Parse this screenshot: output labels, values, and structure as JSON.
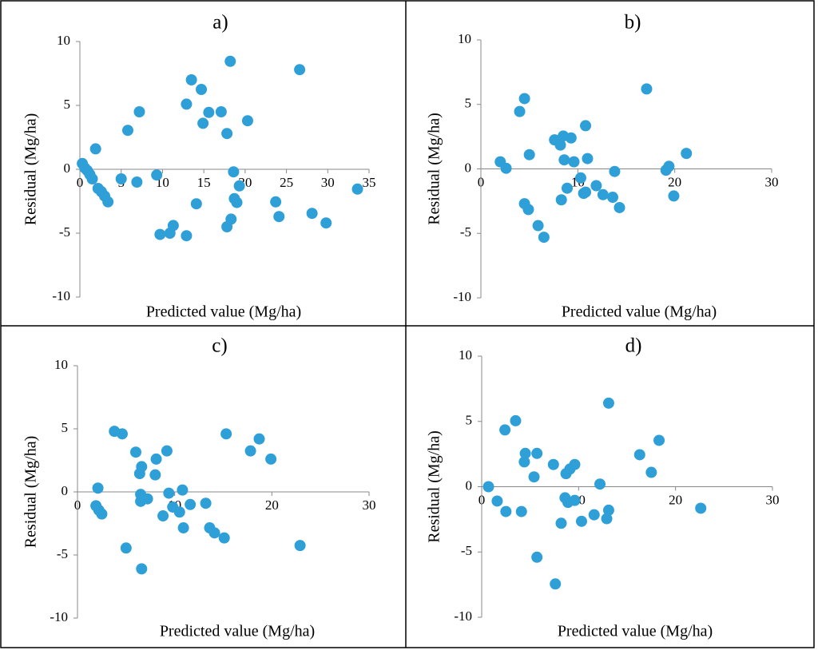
{
  "chart_data": [
    {
      "type": "scatter",
      "title": "a)",
      "xlabel": "Predicted value (Mg/ha)",
      "ylabel": "Residual (Mg/ha)",
      "color": "#2f9fd8",
      "xlim": [
        0,
        35
      ],
      "xticks": [
        0,
        5,
        10,
        15,
        20,
        25,
        30,
        35
      ],
      "ylim": [
        -10,
        10
      ],
      "yticks": [
        -10,
        -5,
        0,
        5,
        10
      ],
      "x": [
        0.3,
        0.6,
        0.9,
        1.2,
        1.5,
        1.9,
        2.2,
        2.6,
        3.0,
        3.4,
        5.0,
        5.8,
        6.9,
        7.2,
        9.3,
        9.7,
        10.9,
        11.3,
        12.9,
        12.9,
        13.5,
        14.1,
        14.7,
        14.9,
        15.6,
        17.1,
        17.8,
        17.8,
        18.3,
        18.2,
        18.6,
        18.7,
        19.0,
        19.3,
        20.3,
        23.7,
        24.1,
        26.6,
        28.1,
        29.8,
        33.6
      ],
      "values": [
        0.45,
        0.1,
        -0.1,
        -0.4,
        -0.75,
        1.6,
        -1.5,
        -1.75,
        -2.1,
        -2.55,
        -0.75,
        3.05,
        -1.0,
        4.5,
        -0.45,
        -5.1,
        -5.0,
        -4.4,
        5.1,
        -5.2,
        7.0,
        -2.7,
        6.25,
        3.6,
        4.45,
        4.5,
        2.8,
        -4.5,
        -3.9,
        8.45,
        -0.2,
        -2.3,
        -2.6,
        -1.3,
        3.8,
        -2.55,
        -3.7,
        7.8,
        -3.45,
        -4.2,
        -1.55
      ]
    },
    {
      "type": "scatter",
      "title": "b)",
      "xlabel": "Predicted value (Mg/ha)",
      "ylabel": "Residual (Mg/ha)",
      "color": "#2f9fd8",
      "xlim": [
        0,
        30
      ],
      "xticks": [
        0,
        10,
        20,
        30
      ],
      "ylim": [
        -10,
        10
      ],
      "yticks": [
        -10,
        -5,
        0,
        5,
        10
      ],
      "x": [
        2.0,
        2.6,
        4.0,
        4.5,
        5.0,
        4.5,
        4.9,
        5.9,
        6.5,
        7.6,
        8.2,
        8.5,
        8.6,
        8.3,
        8.9,
        9.3,
        9.6,
        10.3,
        10.6,
        10.8,
        10.8,
        11.0,
        11.9,
        12.6,
        13.6,
        13.8,
        14.3,
        17.1,
        19.1,
        19.4,
        19.9,
        21.2
      ],
      "values": [
        0.55,
        0.05,
        4.45,
        5.45,
        1.1,
        -2.7,
        -3.15,
        -4.4,
        -5.3,
        2.25,
        1.85,
        2.55,
        0.7,
        -2.4,
        -1.5,
        2.4,
        0.55,
        -0.7,
        -1.9,
        -1.8,
        3.35,
        0.8,
        -1.3,
        -2.0,
        -2.2,
        -0.2,
        -3.0,
        6.2,
        -0.1,
        0.2,
        -2.1,
        1.2
      ]
    },
    {
      "type": "scatter",
      "title": "c)",
      "xlabel": "Predicted value (Mg/ha)",
      "ylabel": "Residual (Mg/ha)",
      "color": "#2f9fd8",
      "xlim": [
        0,
        30
      ],
      "xticks": [
        0,
        10,
        20,
        30
      ],
      "ylim": [
        -10,
        10
      ],
      "yticks": [
        -10,
        -5,
        0,
        5,
        10
      ],
      "x": [
        2.1,
        1.9,
        2.2,
        2.5,
        3.8,
        4.6,
        5.0,
        6.0,
        6.4,
        6.6,
        6.5,
        6.5,
        6.6,
        7.2,
        8.0,
        8.1,
        8.8,
        9.2,
        9.4,
        9.8,
        10.5,
        10.8,
        10.9,
        11.6,
        13.2,
        13.6,
        14.1,
        15.1,
        15.3,
        17.8,
        18.7,
        19.9,
        22.9
      ],
      "values": [
        0.3,
        -1.1,
        -1.45,
        -1.75,
        4.8,
        4.6,
        -4.45,
        3.15,
        1.45,
        2.0,
        -0.2,
        -0.75,
        -6.1,
        -0.55,
        1.35,
        2.6,
        -1.9,
        3.25,
        -0.1,
        -1.2,
        -1.6,
        0.15,
        -2.85,
        -1.0,
        -0.9,
        -2.85,
        -3.25,
        -3.65,
        4.6,
        3.25,
        4.2,
        2.6,
        -4.25
      ]
    },
    {
      "type": "scatter",
      "title": "d)",
      "xlabel": "Predicted value (Mg/ha)",
      "ylabel": "Residual (Mg/ha)",
      "color": "#2f9fd8",
      "xlim": [
        0,
        30
      ],
      "xticks": [
        0,
        10,
        20,
        30
      ],
      "ylim": [
        -10,
        10
      ],
      "yticks": [
        -10,
        -5,
        0,
        5,
        10
      ],
      "x": [
        0.7,
        1.6,
        2.4,
        2.5,
        3.5,
        4.1,
        4.4,
        4.5,
        5.4,
        5.7,
        5.7,
        7.4,
        7.6,
        8.2,
        8.6,
        8.7,
        8.9,
        9.1,
        9.6,
        9.6,
        10.3,
        11.6,
        12.2,
        12.9,
        13.1,
        13.1,
        16.3,
        17.5,
        18.3,
        22.6
      ],
      "values": [
        0.0,
        -1.1,
        4.35,
        -1.9,
        5.05,
        -1.9,
        1.9,
        2.55,
        0.75,
        2.55,
        -5.4,
        1.7,
        -7.45,
        -2.8,
        -0.85,
        1.0,
        -1.2,
        1.35,
        -1.05,
        1.7,
        -2.65,
        -2.15,
        0.2,
        -2.45,
        -1.8,
        6.4,
        2.45,
        1.1,
        3.55,
        -1.65
      ]
    }
  ]
}
